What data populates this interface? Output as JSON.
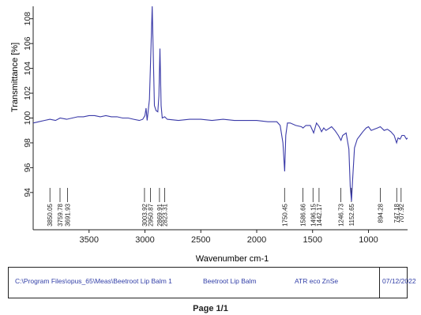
{
  "chart_data": {
    "type": "line",
    "title": "",
    "xlabel": "Wavenumber cm-1",
    "ylabel": "Transmittance [%]",
    "x_reversed": true,
    "xlim": [
      4000,
      650
    ],
    "ylim": [
      91,
      109
    ],
    "x_ticks": [
      3500,
      3000,
      2500,
      2000,
      1500,
      1000
    ],
    "y_ticks": [
      94,
      96,
      98,
      100,
      102,
      104,
      106,
      108
    ],
    "grid": false,
    "series": [
      {
        "color": "#3a3aa8",
        "points": [
          [
            4000,
            99.6
          ],
          [
            3950,
            99.7
          ],
          [
            3900,
            99.8
          ],
          [
            3850,
            99.9
          ],
          [
            3800,
            99.8
          ],
          [
            3759,
            100.0
          ],
          [
            3700,
            99.9
          ],
          [
            3650,
            100.0
          ],
          [
            3600,
            100.1
          ],
          [
            3550,
            100.1
          ],
          [
            3500,
            100.2
          ],
          [
            3450,
            100.2
          ],
          [
            3400,
            100.1
          ],
          [
            3350,
            100.2
          ],
          [
            3300,
            100.1
          ],
          [
            3250,
            100.1
          ],
          [
            3200,
            100.0
          ],
          [
            3150,
            100.0
          ],
          [
            3100,
            99.9
          ],
          [
            3050,
            99.8
          ],
          [
            3020,
            99.9
          ],
          [
            3000,
            100.2
          ],
          [
            2990,
            100.8
          ],
          [
            2980,
            99.8
          ],
          [
            2960,
            101.5
          ],
          [
            2945,
            106.0
          ],
          [
            2935,
            109.2
          ],
          [
            2925,
            105.0
          ],
          [
            2915,
            101.0
          ],
          [
            2900,
            100.6
          ],
          [
            2885,
            100.5
          ],
          [
            2875,
            101.8
          ],
          [
            2866,
            105.6
          ],
          [
            2855,
            101.0
          ],
          [
            2845,
            100.0
          ],
          [
            2823,
            100.1
          ],
          [
            2800,
            99.9
          ],
          [
            2700,
            99.8
          ],
          [
            2600,
            99.9
          ],
          [
            2500,
            99.9
          ],
          [
            2400,
            99.8
          ],
          [
            2300,
            99.9
          ],
          [
            2200,
            99.8
          ],
          [
            2100,
            99.8
          ],
          [
            2000,
            99.8
          ],
          [
            1900,
            99.7
          ],
          [
            1820,
            99.7
          ],
          [
            1790,
            99.4
          ],
          [
            1765,
            98.0
          ],
          [
            1750,
            95.7
          ],
          [
            1740,
            98.6
          ],
          [
            1725,
            99.6
          ],
          [
            1700,
            99.6
          ],
          [
            1650,
            99.4
          ],
          [
            1600,
            99.3
          ],
          [
            1586,
            99.2
          ],
          [
            1560,
            99.4
          ],
          [
            1520,
            99.4
          ],
          [
            1490,
            98.8
          ],
          [
            1465,
            99.6
          ],
          [
            1440,
            99.3
          ],
          [
            1420,
            98.9
          ],
          [
            1400,
            99.2
          ],
          [
            1380,
            99.0
          ],
          [
            1330,
            99.3
          ],
          [
            1300,
            99.0
          ],
          [
            1270,
            98.6
          ],
          [
            1246,
            98.2
          ],
          [
            1230,
            98.6
          ],
          [
            1200,
            98.8
          ],
          [
            1175,
            97.5
          ],
          [
            1163,
            94.5
          ],
          [
            1152,
            93.3
          ],
          [
            1142,
            95.0
          ],
          [
            1125,
            97.6
          ],
          [
            1100,
            98.3
          ],
          [
            1075,
            98.6
          ],
          [
            1050,
            98.9
          ],
          [
            1020,
            99.2
          ],
          [
            1000,
            99.3
          ],
          [
            975,
            99.0
          ],
          [
            950,
            99.1
          ],
          [
            920,
            99.2
          ],
          [
            894,
            99.3
          ],
          [
            860,
            99.0
          ],
          [
            830,
            99.1
          ],
          [
            800,
            98.9
          ],
          [
            770,
            98.6
          ],
          [
            748,
            98.0
          ],
          [
            735,
            98.4
          ],
          [
            717,
            98.3
          ],
          [
            700,
            98.6
          ],
          [
            680,
            98.6
          ],
          [
            660,
            98.3
          ],
          [
            650,
            98.4
          ]
        ]
      }
    ],
    "peak_labels": [
      "3850.05",
      "3759.78",
      "3691.93",
      "3003.92",
      "2950.87",
      "2869.91",
      "2823.31",
      "1750.45",
      "1586.66",
      "1496.15",
      "1442.17",
      "1246.73",
      "1152.65",
      "894.28",
      "747.18",
      "707.92"
    ],
    "peak_positions": [
      3850.05,
      3759.78,
      3691.93,
      3003.92,
      2950.87,
      2869.91,
      2823.31,
      1750.45,
      1586.66,
      1496.15,
      1442.17,
      1246.73,
      1152.65,
      894.28,
      747.18,
      707.92
    ]
  },
  "footer": {
    "file_path": "C:\\Program Files\\opus_65\\Meas\\Beetroot Lip Balm 1",
    "sample_name": "Beetroot Lip Balm",
    "accessory": "ATR eco ZnSe",
    "date": "07/12/2022",
    "page": "Page 1/1"
  },
  "colors": {
    "line": "#3a3aa8",
    "axis": "#222222",
    "info_text": "#3340a8"
  }
}
